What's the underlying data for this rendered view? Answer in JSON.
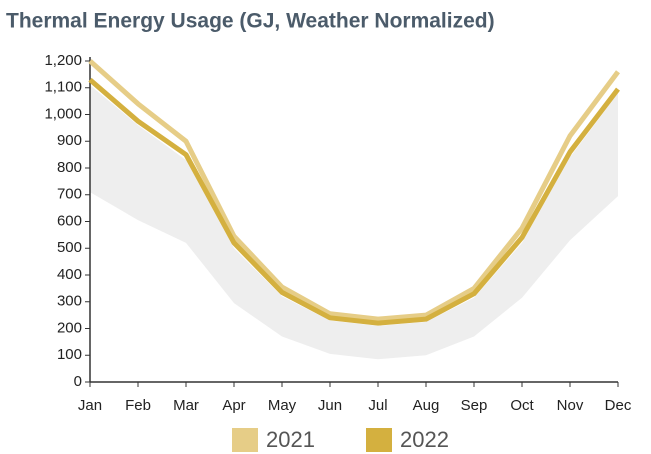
{
  "chart_data": {
    "type": "line",
    "title": "Thermal Energy Usage (GJ, Weather Normalized)",
    "categories": [
      "Jan",
      "Feb",
      "Mar",
      "Apr",
      "May",
      "Jun",
      "Jul",
      "Aug",
      "Sep",
      "Oct",
      "Nov",
      "Dec"
    ],
    "series": [
      {
        "name": "2021",
        "color": "#e6cd87",
        "values": [
          1200,
          1040,
          900,
          545,
          355,
          255,
          235,
          250,
          350,
          575,
          920,
          1160
        ]
      },
      {
        "name": "2022",
        "color": "#d4b03f",
        "values": [
          1130,
          975,
          850,
          520,
          335,
          240,
          220,
          235,
          330,
          540,
          860,
          1095
        ]
      }
    ],
    "band": {
      "color": "#eeeeee",
      "high": [
        1110,
        960,
        830,
        500,
        320,
        230,
        210,
        225,
        315,
        520,
        840,
        1080
      ],
      "low": [
        710,
        605,
        520,
        295,
        170,
        105,
        85,
        100,
        170,
        315,
        530,
        695
      ]
    },
    "ylim": [
      0,
      1200
    ],
    "yticks": [
      0,
      100,
      200,
      300,
      400,
      500,
      600,
      700,
      800,
      900,
      {
        "value": 1000,
        "label": "1,000"
      },
      {
        "value": 1100,
        "label": "1,100"
      },
      {
        "value": 1200,
        "label": "1,200"
      }
    ],
    "grid": false
  }
}
